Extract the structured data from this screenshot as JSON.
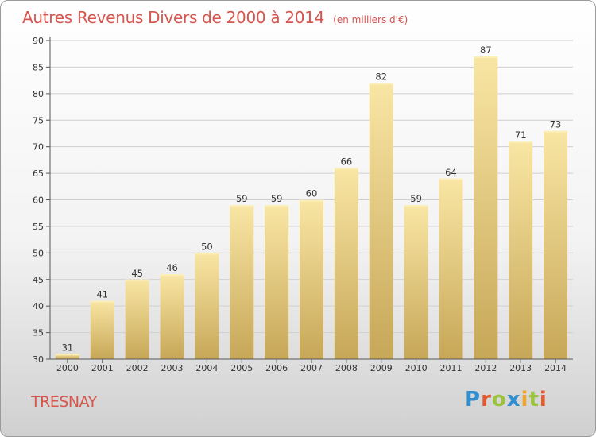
{
  "header": {
    "title": "Autres Revenus Divers de 2000 à 2014",
    "unit": "(en milliers d'€)"
  },
  "footer": {
    "place": "TRESNAY",
    "logo": "Proxiti"
  },
  "colors": {
    "title": "#d6554d",
    "bar_light": "#f8e4a0",
    "bar_dark": "#c9a95a",
    "grid": "#cccccc"
  },
  "chart_data": {
    "type": "bar",
    "title": "Autres Revenus Divers de 2000 à 2014",
    "subtitle": "(en milliers d'€)",
    "xlabel": "",
    "ylabel": "",
    "categories": [
      "2000",
      "2001",
      "2002",
      "2003",
      "2004",
      "2005",
      "2006",
      "2007",
      "2008",
      "2009",
      "2010",
      "2011",
      "2012",
      "2013",
      "2014"
    ],
    "values": [
      31,
      41,
      45,
      46,
      50,
      59,
      59,
      60,
      66,
      82,
      59,
      64,
      87,
      71,
      73
    ],
    "ylim": [
      30,
      90
    ],
    "yticks": [
      30,
      35,
      40,
      45,
      50,
      55,
      60,
      65,
      70,
      75,
      80,
      85,
      90
    ],
    "grid": true,
    "legend": "none",
    "data_labels": true
  }
}
